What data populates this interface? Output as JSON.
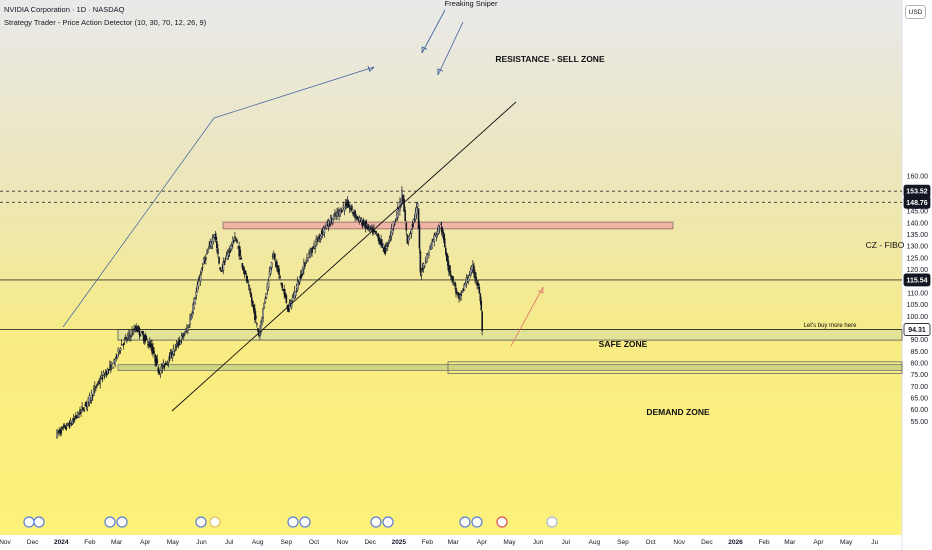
{
  "header": {
    "title": "NVIDIA Corporation · 1D · NASDAQ",
    "indicator": "Strategy Trader - Price Action Detector (10, 30, 70, 12, 26, 9)",
    "currency": "USD"
  },
  "chart_data": {
    "type": "candlestick",
    "y_axis_ticks": [
      55,
      60,
      65,
      70,
      75,
      80,
      85,
      90,
      95,
      100,
      105,
      110,
      115,
      120,
      125,
      130,
      135,
      140,
      145,
      150,
      155,
      160
    ],
    "x_axis_ticks": [
      "Nov",
      "Dec",
      "2024",
      "Feb",
      "Mar",
      "Apr",
      "May",
      "Jun",
      "Jul",
      "Aug",
      "Sep",
      "Oct",
      "Nov",
      "Dec",
      "2025",
      "Feb",
      "Mar",
      "Apr",
      "May",
      "Jun",
      "Jul",
      "Aug",
      "Sep",
      "Oct",
      "Nov",
      "Dec",
      "2026",
      "Feb",
      "Mar",
      "Apr",
      "May",
      "Ju"
    ],
    "price_labels": [
      {
        "value": 153.52,
        "text": "153.52",
        "style": "dark"
      },
      {
        "value": 148.76,
        "text": "148.76",
        "style": "dark"
      },
      {
        "value": 115.54,
        "text": "115.54",
        "style": "dark"
      },
      {
        "value": 94.31,
        "text": "94.31",
        "style": "light"
      }
    ],
    "horizontal_lines": [
      {
        "value": 153.52,
        "dashed": true
      },
      {
        "value": 148.76,
        "dashed": true
      },
      {
        "value": 115.54,
        "dashed": false
      },
      {
        "value": 94.31,
        "dashed": false
      }
    ],
    "zones": [
      {
        "label": "RESISTANCE - SELL ZONE",
        "from": 137.4,
        "to": 140.3,
        "color": "#eeaaa5"
      },
      {
        "label": "SAFE ZONE",
        "from": 89.8,
        "to": 94.3,
        "color": "#dfe29a"
      },
      {
        "label": "DEMAND ZONE",
        "from": 76.8,
        "to": 79.3,
        "color": "#c8d080"
      }
    ],
    "annotations": [
      {
        "text": "Freaking Sniper"
      },
      {
        "text": "CZ - FIBO"
      },
      {
        "text": "Let's buy more here"
      }
    ],
    "price_series_approx": [
      {
        "date": "2023-12-29",
        "close": 49.5
      },
      {
        "date": "2024-01-15",
        "close": 54.5
      },
      {
        "date": "2024-02-01",
        "close": 63.0
      },
      {
        "date": "2024-02-15",
        "close": 73.0
      },
      {
        "date": "2024-03-01",
        "close": 80.0
      },
      {
        "date": "2024-03-08",
        "close": 87.5
      },
      {
        "date": "2024-03-25",
        "close": 95.0
      },
      {
        "date": "2024-04-10",
        "close": 87.0
      },
      {
        "date": "2024-04-19",
        "close": 76.2
      },
      {
        "date": "2024-05-01",
        "close": 83.0
      },
      {
        "date": "2024-05-20",
        "close": 95.0
      },
      {
        "date": "2024-06-05",
        "close": 122.0
      },
      {
        "date": "2024-06-18",
        "close": 135.6
      },
      {
        "date": "2024-06-24",
        "close": 119.0
      },
      {
        "date": "2024-07-10",
        "close": 134.0
      },
      {
        "date": "2024-07-25",
        "close": 112.0
      },
      {
        "date": "2024-08-05",
        "close": 92.0
      },
      {
        "date": "2024-08-20",
        "close": 127.0
      },
      {
        "date": "2024-09-06",
        "close": 102.8
      },
      {
        "date": "2024-09-25",
        "close": 124.0
      },
      {
        "date": "2024-10-15",
        "close": 138.0
      },
      {
        "date": "2024-11-08",
        "close": 148.0
      },
      {
        "date": "2024-11-22",
        "close": 141.0
      },
      {
        "date": "2024-12-10",
        "close": 135.0
      },
      {
        "date": "2024-12-20",
        "close": 128.0
      },
      {
        "date": "2025-01-06",
        "close": 149.4
      },
      {
        "date": "2025-01-07",
        "close": 153.1
      },
      {
        "date": "2025-01-13",
        "close": 131.8
      },
      {
        "date": "2025-01-24",
        "close": 147.2
      },
      {
        "date": "2025-01-27",
        "close": 118.4
      },
      {
        "date": "2025-02-10",
        "close": 133.0
      },
      {
        "date": "2025-02-18",
        "close": 139.4
      },
      {
        "date": "2025-02-27",
        "close": 120.2
      },
      {
        "date": "2025-03-10",
        "close": 106.9
      },
      {
        "date": "2025-03-18",
        "close": 115.4
      },
      {
        "date": "2025-03-25",
        "close": 120.7
      },
      {
        "date": "2025-04-01",
        "close": 110.4
      },
      {
        "date": "2025-04-03",
        "close": 101.8
      },
      {
        "date": "2025-04-04",
        "close": 94.3
      }
    ]
  }
}
